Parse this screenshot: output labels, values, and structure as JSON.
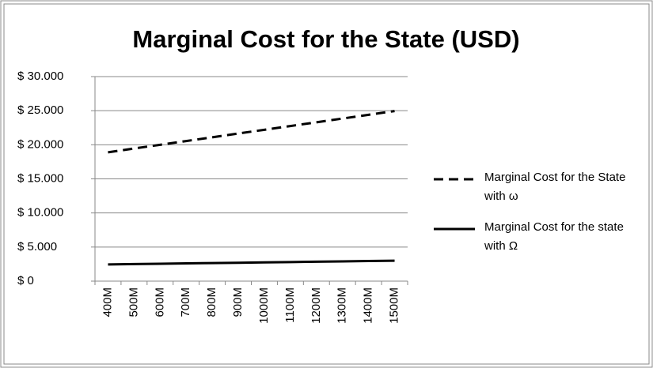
{
  "chart_data": {
    "type": "line",
    "title": "Marginal Cost for the State (USD)",
    "categories": [
      "400M",
      "500M",
      "600M",
      "700M",
      "800M",
      "900M",
      "1000M",
      "1100M",
      "1200M",
      "1300M",
      "1400M",
      "1500M"
    ],
    "series": [
      {
        "name": "Marginal Cost for the State with ω",
        "color": "#000000",
        "dash": true,
        "values": [
          18900,
          19450,
          20000,
          20550,
          21100,
          21650,
          22200,
          22750,
          23300,
          23850,
          24400,
          24950
        ]
      },
      {
        "name": "Marginal Cost for the state with Ω",
        "color": "#000000",
        "dash": false,
        "values": [
          2450,
          2500,
          2550,
          2600,
          2650,
          2700,
          2750,
          2800,
          2850,
          2900,
          2950,
          3000
        ]
      }
    ],
    "ylim": [
      0,
      30000
    ],
    "yticks": [
      {
        "value": 0,
        "label": "$ 0"
      },
      {
        "value": 5000,
        "label": "$ 5.000"
      },
      {
        "value": 10000,
        "label": "$ 10.000"
      },
      {
        "value": 15000,
        "label": "$ 15.000"
      },
      {
        "value": 20000,
        "label": "$ 20.000"
      },
      {
        "value": 25000,
        "label": "$ 25.000"
      },
      {
        "value": 30000,
        "label": "$ 30.000"
      }
    ],
    "grid": true,
    "legend": "right"
  }
}
